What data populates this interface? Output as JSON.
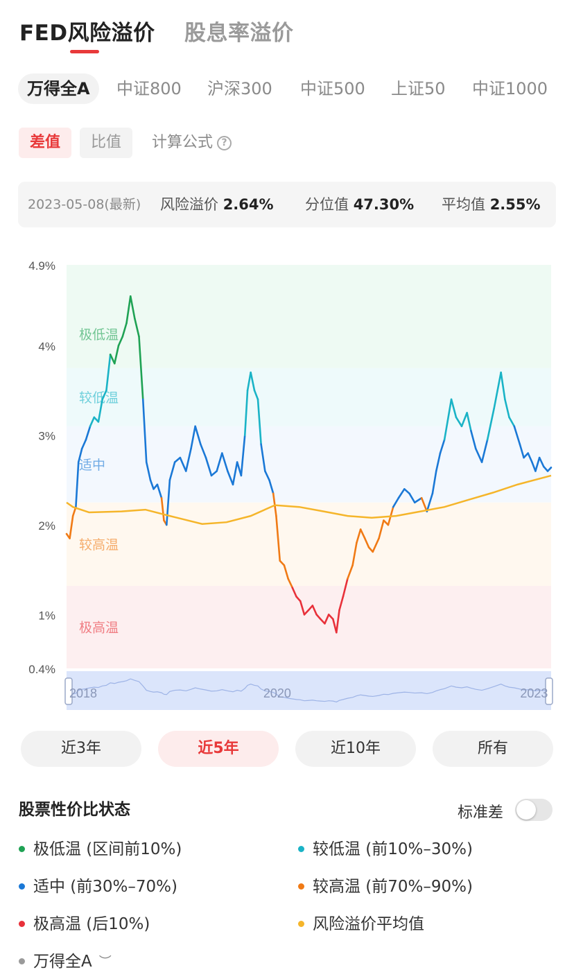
{
  "header": {
    "tabs": [
      {
        "label": "FED风险溢价",
        "active": true
      },
      {
        "label": "股息率溢价",
        "active": false
      }
    ]
  },
  "index_tabs": [
    {
      "label": "万得全A",
      "active": true
    },
    {
      "label": "中证800",
      "active": false
    },
    {
      "label": "沪深300",
      "active": false
    },
    {
      "label": "中证500",
      "active": false
    },
    {
      "label": "上证50",
      "active": false
    },
    {
      "label": "中证1000",
      "active": false
    }
  ],
  "mode": {
    "buttons": [
      {
        "label": "差值",
        "active": true
      },
      {
        "label": "比值",
        "active": false
      }
    ],
    "formula_label": "计算公式",
    "help_icon": "question-circle-icon"
  },
  "stats": {
    "date": "2023-05-08(最新)",
    "premium_label": "风险溢价",
    "premium_value": "2.64%",
    "percentile_label": "分位值",
    "percentile_value": "47.30%",
    "average_label": "平均值",
    "average_value": "2.55%"
  },
  "chart_data": {
    "type": "line",
    "title": "",
    "xlabel": "",
    "ylabel": "",
    "ylim": [
      0.4,
      4.9
    ],
    "y_tick_labels": [
      "4.9%",
      "4%",
      "3%",
      "2%",
      "1%",
      "0.4%"
    ],
    "y_tick_values": [
      4.9,
      4.0,
      3.0,
      2.0,
      1.0,
      0.4
    ],
    "x_range": [
      "2018-05-08",
      "2023-05-08"
    ],
    "x_tick_labels": [
      {
        "label": "2018",
        "date": "2018-05-08"
      },
      {
        "label": "2020",
        "date": "2020-05-08"
      },
      {
        "label": "2023",
        "date": "2023-01-01"
      }
    ],
    "zone_labels": [
      "极低温",
      "较低温",
      "适中",
      "较高温",
      "极高温"
    ],
    "zones": [
      {
        "name": "极低温",
        "from": 3.75,
        "to": 4.9,
        "color": "#1fa254"
      },
      {
        "name": "较低温",
        "from": 3.1,
        "to": 3.75,
        "color": "#1ab3c6"
      },
      {
        "name": "适中",
        "from": 2.25,
        "to": 3.1,
        "color": "#1a78d6"
      },
      {
        "name": "较高温",
        "from": 1.32,
        "to": 2.25,
        "color": "#f07a15"
      },
      {
        "name": "极高温",
        "from": 0.4,
        "to": 1.32,
        "color": "#e8313a"
      }
    ],
    "series": [
      {
        "name": "风险溢价",
        "colored_by_zone": true,
        "points": [
          [
            "2018-05-08",
            1.9
          ],
          [
            "2018-05-20",
            1.85
          ],
          [
            "2018-06-01",
            2.1
          ],
          [
            "2018-06-12",
            2.2
          ],
          [
            "2018-06-22",
            2.7
          ],
          [
            "2018-07-05",
            2.85
          ],
          [
            "2018-07-20",
            2.95
          ],
          [
            "2018-08-05",
            3.1
          ],
          [
            "2018-08-20",
            3.2
          ],
          [
            "2018-09-05",
            3.15
          ],
          [
            "2018-09-20",
            3.4
          ],
          [
            "2018-10-05",
            3.5
          ],
          [
            "2018-10-20",
            3.9
          ],
          [
            "2018-11-05",
            3.8
          ],
          [
            "2018-11-20",
            4.0
          ],
          [
            "2018-12-05",
            4.1
          ],
          [
            "2018-12-20",
            4.25
          ],
          [
            "2019-01-04",
            4.55
          ],
          [
            "2019-01-20",
            4.3
          ],
          [
            "2019-02-05",
            4.1
          ],
          [
            "2019-02-20",
            3.4
          ],
          [
            "2019-03-05",
            2.7
          ],
          [
            "2019-03-20",
            2.5
          ],
          [
            "2019-04-01",
            2.4
          ],
          [
            "2019-04-15",
            2.45
          ],
          [
            "2019-05-01",
            2.3
          ],
          [
            "2019-05-10",
            2.05
          ],
          [
            "2019-05-20",
            2.0
          ],
          [
            "2019-06-01",
            2.5
          ],
          [
            "2019-06-20",
            2.7
          ],
          [
            "2019-07-10",
            2.75
          ],
          [
            "2019-08-01",
            2.6
          ],
          [
            "2019-08-20",
            2.85
          ],
          [
            "2019-09-05",
            3.1
          ],
          [
            "2019-09-25",
            2.9
          ],
          [
            "2019-10-15",
            2.75
          ],
          [
            "2019-11-05",
            2.55
          ],
          [
            "2019-11-25",
            2.6
          ],
          [
            "2019-12-15",
            2.8
          ],
          [
            "2020-01-05",
            2.6
          ],
          [
            "2020-01-25",
            2.45
          ],
          [
            "2020-02-10",
            2.7
          ],
          [
            "2020-02-25",
            2.55
          ],
          [
            "2020-03-10",
            3.0
          ],
          [
            "2020-03-20",
            3.5
          ],
          [
            "2020-04-01",
            3.7
          ],
          [
            "2020-04-15",
            3.5
          ],
          [
            "2020-04-28",
            3.4
          ],
          [
            "2020-05-10",
            2.9
          ],
          [
            "2020-05-25",
            2.6
          ],
          [
            "2020-06-10",
            2.5
          ],
          [
            "2020-06-25",
            2.35
          ],
          [
            "2020-07-06",
            2.1
          ],
          [
            "2020-07-20",
            1.6
          ],
          [
            "2020-08-05",
            1.55
          ],
          [
            "2020-08-20",
            1.4
          ],
          [
            "2020-09-05",
            1.3
          ],
          [
            "2020-09-20",
            1.2
          ],
          [
            "2020-10-05",
            1.15
          ],
          [
            "2020-10-20",
            1.0
          ],
          [
            "2020-11-05",
            1.05
          ],
          [
            "2020-11-20",
            1.1
          ],
          [
            "2020-12-05",
            1.0
          ],
          [
            "2020-12-20",
            0.95
          ],
          [
            "2021-01-05",
            0.9
          ],
          [
            "2021-01-20",
            1.0
          ],
          [
            "2021-02-05",
            0.95
          ],
          [
            "2021-02-18",
            0.8
          ],
          [
            "2021-03-01",
            1.05
          ],
          [
            "2021-03-15",
            1.2
          ],
          [
            "2021-04-01",
            1.4
          ],
          [
            "2021-04-20",
            1.55
          ],
          [
            "2021-05-05",
            1.8
          ],
          [
            "2021-05-20",
            1.95
          ],
          [
            "2021-06-05",
            1.85
          ],
          [
            "2021-06-20",
            1.75
          ],
          [
            "2021-07-05",
            1.7
          ],
          [
            "2021-07-28",
            1.85
          ],
          [
            "2021-08-15",
            2.05
          ],
          [
            "2021-09-01",
            2.0
          ],
          [
            "2021-09-20",
            2.2
          ],
          [
            "2021-10-10",
            2.3
          ],
          [
            "2021-11-01",
            2.4
          ],
          [
            "2021-11-20",
            2.35
          ],
          [
            "2021-12-10",
            2.25
          ],
          [
            "2022-01-05",
            2.3
          ],
          [
            "2022-01-25",
            2.15
          ],
          [
            "2022-02-15",
            2.35
          ],
          [
            "2022-03-01",
            2.6
          ],
          [
            "2022-03-16",
            2.8
          ],
          [
            "2022-04-01",
            2.95
          ],
          [
            "2022-04-27",
            3.4
          ],
          [
            "2022-05-15",
            3.2
          ],
          [
            "2022-06-05",
            3.1
          ],
          [
            "2022-06-25",
            3.25
          ],
          [
            "2022-07-10",
            3.05
          ],
          [
            "2022-07-28",
            2.85
          ],
          [
            "2022-08-20",
            2.7
          ],
          [
            "2022-09-10",
            2.95
          ],
          [
            "2022-10-05",
            3.3
          ],
          [
            "2022-10-31",
            3.7
          ],
          [
            "2022-11-15",
            3.4
          ],
          [
            "2022-12-01",
            3.2
          ],
          [
            "2022-12-20",
            3.1
          ],
          [
            "2023-01-10",
            2.9
          ],
          [
            "2023-01-25",
            2.75
          ],
          [
            "2023-02-10",
            2.8
          ],
          [
            "2023-02-25",
            2.7
          ],
          [
            "2023-03-10",
            2.6
          ],
          [
            "2023-03-25",
            2.75
          ],
          [
            "2023-04-10",
            2.65
          ],
          [
            "2023-04-25",
            2.6
          ],
          [
            "2023-05-08",
            2.64
          ]
        ]
      },
      {
        "name": "风险溢价平均值",
        "color": "#f5b52a",
        "points": [
          [
            "2018-05-08",
            2.25
          ],
          [
            "2018-06-01",
            2.2
          ],
          [
            "2018-08-01",
            2.14
          ],
          [
            "2018-12-01",
            2.15
          ],
          [
            "2019-03-01",
            2.17
          ],
          [
            "2019-06-01",
            2.1
          ],
          [
            "2019-10-01",
            2.01
          ],
          [
            "2020-01-01",
            2.03
          ],
          [
            "2020-04-01",
            2.1
          ],
          [
            "2020-07-01",
            2.22
          ],
          [
            "2020-10-01",
            2.2
          ],
          [
            "2021-01-01",
            2.15
          ],
          [
            "2021-04-01",
            2.1
          ],
          [
            "2021-07-01",
            2.08
          ],
          [
            "2021-10-01",
            2.1
          ],
          [
            "2022-01-01",
            2.15
          ],
          [
            "2022-04-01",
            2.2
          ],
          [
            "2022-07-01",
            2.28
          ],
          [
            "2022-10-01",
            2.36
          ],
          [
            "2023-01-01",
            2.45
          ],
          [
            "2023-05-08",
            2.55
          ]
        ]
      }
    ],
    "navigator_labels": [
      {
        "label": "2018",
        "date": "2018-05-08"
      },
      {
        "label": "2020",
        "date": "2020-05-08"
      },
      {
        "label": "2023",
        "date": "2023-01-01"
      }
    ],
    "grid": false,
    "legend": "bottom"
  },
  "ranges": [
    {
      "label": "近3年",
      "active": false
    },
    {
      "label": "近5年",
      "active": true
    },
    {
      "label": "近10年",
      "active": false
    },
    {
      "label": "所有",
      "active": false
    }
  ],
  "legend": {
    "title": "股票性价比状态",
    "std_toggle_label": "标准差",
    "std_toggle_on": false,
    "items": [
      {
        "label": "极低温 (区间前10%)",
        "color": "#1fa254"
      },
      {
        "label": "较低温 (前10%–30%)",
        "color": "#1ab3c6"
      },
      {
        "label": "适中 (前30%–70%)",
        "color": "#1a78d6"
      },
      {
        "label": "较高温 (前70%–90%)",
        "color": "#f07a15"
      },
      {
        "label": "极高温 (后10%)",
        "color": "#e8313a"
      },
      {
        "label": "风险溢价平均值",
        "color": "#f5b52a"
      },
      {
        "label": "万得全A",
        "color": "#9a9a9a",
        "icon": "eye-closed-icon"
      }
    ]
  }
}
